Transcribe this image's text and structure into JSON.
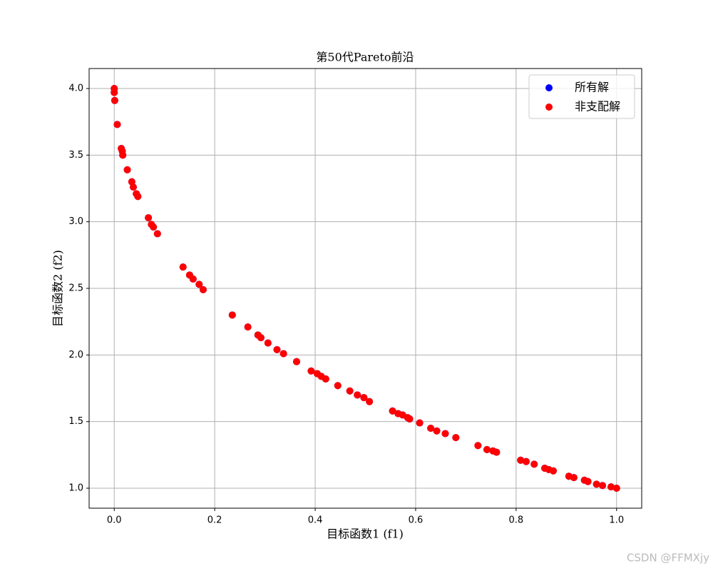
{
  "chart_data": {
    "type": "scatter",
    "title": "第50代Pareto前沿",
    "x_label": "目标函数1 (f1)",
    "y_label": "目标函数2 (f2)",
    "xlim": [
      -0.05,
      1.05
    ],
    "ylim": [
      0.85,
      4.15
    ],
    "xticks": [
      {
        "value": 0,
        "label": "0.0"
      },
      0.2,
      0.4,
      0.6,
      0.8,
      {
        "value": 1,
        "label": "1.0"
      }
    ],
    "yticks": [
      {
        "value": 1,
        "label": "1.0"
      },
      1.5,
      {
        "value": 2,
        "label": "2.0"
      },
      2.5,
      {
        "value": 3,
        "label": "3.0"
      },
      3.5,
      {
        "value": 4,
        "label": "4.0"
      }
    ],
    "grid": true,
    "legend": "upper right",
    "series": [
      {
        "name": "所有解",
        "color": "#0000ff",
        "x": [
          0,
          0,
          0.001,
          0.006,
          0.014,
          0.016,
          0.017,
          0.026,
          0.035,
          0.038,
          0.044,
          0.047,
          0.068,
          0.074,
          0.078,
          0.086,
          0.137,
          0.15,
          0.157,
          0.169,
          0.177,
          0.235,
          0.266,
          0.286,
          0.292,
          0.306,
          0.324,
          0.337,
          0.363,
          0.392,
          0.404,
          0.412,
          0.421,
          0.445,
          0.469,
          0.484,
          0.497,
          0.508,
          0.554,
          0.565,
          0.574,
          0.584,
          0.588,
          0.608,
          0.63,
          0.642,
          0.659,
          0.68,
          0.724,
          0.742,
          0.754,
          0.761,
          0.809,
          0.82,
          0.836,
          0.857,
          0.865,
          0.874,
          0.905,
          0.915,
          0.936,
          0.943,
          0.96,
          0.972,
          0.989,
          1
        ],
        "values": [
          4,
          3.97,
          3.91,
          3.73,
          3.55,
          3.53,
          3.5,
          3.39,
          3.3,
          3.26,
          3.21,
          3.19,
          3.03,
          2.98,
          2.96,
          2.91,
          2.66,
          2.6,
          2.57,
          2.53,
          2.49,
          2.3,
          2.21,
          2.15,
          2.13,
          2.09,
          2.04,
          2.01,
          1.95,
          1.88,
          1.86,
          1.84,
          1.82,
          1.77,
          1.73,
          1.7,
          1.68,
          1.65,
          1.58,
          1.56,
          1.55,
          1.53,
          1.52,
          1.49,
          1.45,
          1.43,
          1.41,
          1.38,
          1.32,
          1.29,
          1.28,
          1.27,
          1.21,
          1.2,
          1.18,
          1.15,
          1.14,
          1.13,
          1.09,
          1.08,
          1.06,
          1.05,
          1.03,
          1.02,
          1.01,
          1
        ]
      },
      {
        "name": "非支配解",
        "color": "#ff0000",
        "x": [
          0,
          0,
          0.001,
          0.006,
          0.014,
          0.016,
          0.017,
          0.026,
          0.035,
          0.038,
          0.044,
          0.047,
          0.068,
          0.074,
          0.078,
          0.086,
          0.137,
          0.15,
          0.157,
          0.169,
          0.177,
          0.235,
          0.266,
          0.286,
          0.292,
          0.306,
          0.324,
          0.337,
          0.363,
          0.392,
          0.404,
          0.412,
          0.421,
          0.445,
          0.469,
          0.484,
          0.497,
          0.508,
          0.554,
          0.565,
          0.574,
          0.584,
          0.588,
          0.608,
          0.63,
          0.642,
          0.659,
          0.68,
          0.724,
          0.742,
          0.754,
          0.761,
          0.809,
          0.82,
          0.836,
          0.857,
          0.865,
          0.874,
          0.905,
          0.915,
          0.936,
          0.943,
          0.96,
          0.972,
          0.989,
          1
        ],
        "values": [
          4,
          3.97,
          3.91,
          3.73,
          3.55,
          3.53,
          3.5,
          3.39,
          3.3,
          3.26,
          3.21,
          3.19,
          3.03,
          2.98,
          2.96,
          2.91,
          2.66,
          2.6,
          2.57,
          2.53,
          2.49,
          2.3,
          2.21,
          2.15,
          2.13,
          2.09,
          2.04,
          2.01,
          1.95,
          1.88,
          1.86,
          1.84,
          1.82,
          1.77,
          1.73,
          1.7,
          1.68,
          1.65,
          1.58,
          1.56,
          1.55,
          1.53,
          1.52,
          1.49,
          1.45,
          1.43,
          1.41,
          1.38,
          1.32,
          1.29,
          1.28,
          1.27,
          1.21,
          1.2,
          1.18,
          1.15,
          1.14,
          1.13,
          1.09,
          1.08,
          1.06,
          1.05,
          1.03,
          1.02,
          1.01,
          1
        ]
      }
    ]
  },
  "watermark": "CSDN @FFMXjy"
}
